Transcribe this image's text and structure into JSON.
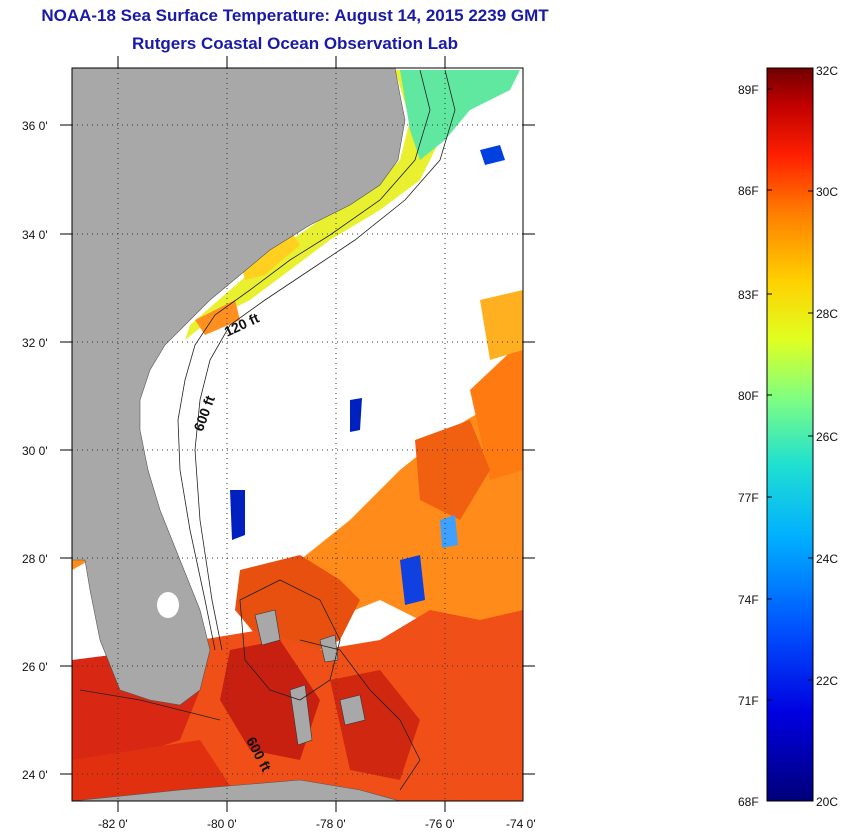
{
  "title": {
    "line1": "NOAA-18 Sea Surface Temperature:  August 14, 2015 2239 GMT",
    "line2": "Rutgers Coastal Ocean Observation Lab"
  },
  "map": {
    "lat_labels": [
      "36 0'",
      "34 0'",
      "32 0'",
      "30 0'",
      "28 0'",
      "26 0'",
      "24 0'"
    ],
    "lon_labels": [
      "-82 0'",
      "-80 0'",
      "-78 0'",
      "-76 0'",
      "-74 0'"
    ],
    "contour_labels": [
      "120 ft",
      "600 ft",
      "600 ft"
    ],
    "colors": {
      "land": "#a8a8a8",
      "ocean_nodata": "#ffffff",
      "frame": "#000000"
    }
  },
  "colorbar": {
    "fahrenheit": [
      "89F",
      "86F",
      "83F",
      "80F",
      "77F",
      "74F",
      "71F",
      "68F"
    ],
    "celsius": [
      "32C",
      "30C",
      "28C",
      "26C",
      "24C",
      "22C",
      "20C"
    ],
    "range_c": [
      20,
      32
    ]
  }
}
